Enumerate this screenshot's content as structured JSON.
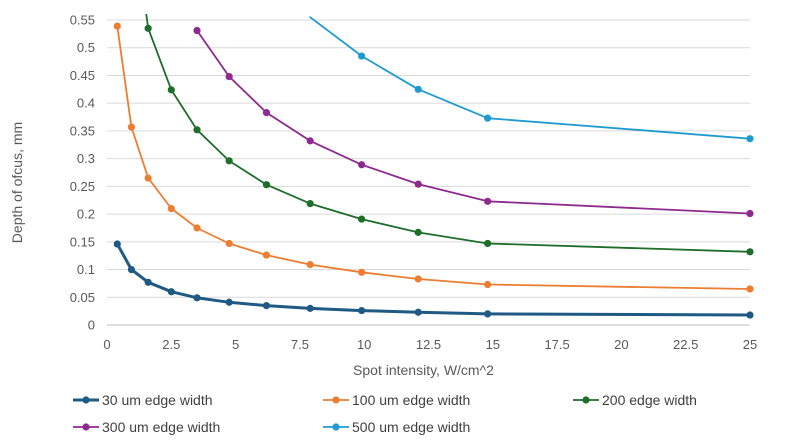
{
  "chart_data": {
    "type": "line",
    "title": "",
    "xlabel": "Spot intensity, W/cm^2",
    "ylabel": "Depth of ofcus, mm",
    "xlim": [
      0,
      25
    ],
    "ylim": [
      0,
      0.55
    ],
    "x_ticks": [
      "0",
      "2.5",
      "5",
      "7.5",
      "10",
      "12.5",
      "15",
      "17.5",
      "20",
      "22.5",
      "25"
    ],
    "y_ticks": [
      "0",
      "0.05",
      "0.1",
      "0.15",
      "0.2",
      "0.25",
      "0.3",
      "0.35",
      "0.4",
      "0.45",
      "0.5",
      "0.55"
    ],
    "grid": "horizontal",
    "legend_position": "bottom",
    "series": [
      {
        "name": "30 um edge width",
        "color": "#1f5a84",
        "points": [
          [
            0.4,
            0.146
          ],
          [
            0.95,
            0.1
          ],
          [
            1.6,
            0.077
          ],
          [
            2.5,
            0.06
          ],
          [
            3.5,
            0.049
          ],
          [
            4.75,
            0.041
          ],
          [
            6.2,
            0.035
          ],
          [
            7.9,
            0.03
          ],
          [
            9.9,
            0.026
          ],
          [
            12.1,
            0.023
          ],
          [
            14.8,
            0.02
          ],
          [
            25,
            0.018
          ]
        ]
      },
      {
        "name": "100 um edge width",
        "color": "#ed7d31",
        "points": [
          [
            0.4,
            0.539
          ],
          [
            0.95,
            0.357
          ],
          [
            1.6,
            0.265
          ],
          [
            2.5,
            0.21
          ],
          [
            3.5,
            0.175
          ],
          [
            4.75,
            0.147
          ],
          [
            6.2,
            0.126
          ],
          [
            7.9,
            0.109
          ],
          [
            9.9,
            0.095
          ],
          [
            12.1,
            0.083
          ],
          [
            14.8,
            0.073
          ],
          [
            25,
            0.065
          ]
        ]
      },
      {
        "name": "200 edge width",
        "color": "#1e6e2a",
        "points": [
          [
            1.35,
            0.62
          ],
          [
            1.6,
            0.535
          ],
          [
            2.5,
            0.424
          ],
          [
            3.5,
            0.352
          ],
          [
            4.75,
            0.296
          ],
          [
            6.2,
            0.253
          ],
          [
            7.9,
            0.219
          ],
          [
            9.9,
            0.191
          ],
          [
            12.1,
            0.167
          ],
          [
            14.8,
            0.147
          ],
          [
            25,
            0.132
          ]
        ]
      },
      {
        "name": "300 um edge width",
        "color": "#8e2a8e",
        "points": [
          [
            3.5,
            0.531
          ],
          [
            4.75,
            0.448
          ],
          [
            6.2,
            0.383
          ],
          [
            7.9,
            0.332
          ],
          [
            9.9,
            0.289
          ],
          [
            12.1,
            0.254
          ],
          [
            14.8,
            0.223
          ],
          [
            25,
            0.201
          ]
        ]
      },
      {
        "name": "500 um edge width",
        "color": "#1f9bd1",
        "points": [
          [
            7.9,
            0.555
          ],
          [
            9.9,
            0.485
          ],
          [
            12.1,
            0.425
          ],
          [
            14.8,
            0.373
          ],
          [
            25,
            0.336
          ]
        ]
      }
    ]
  }
}
